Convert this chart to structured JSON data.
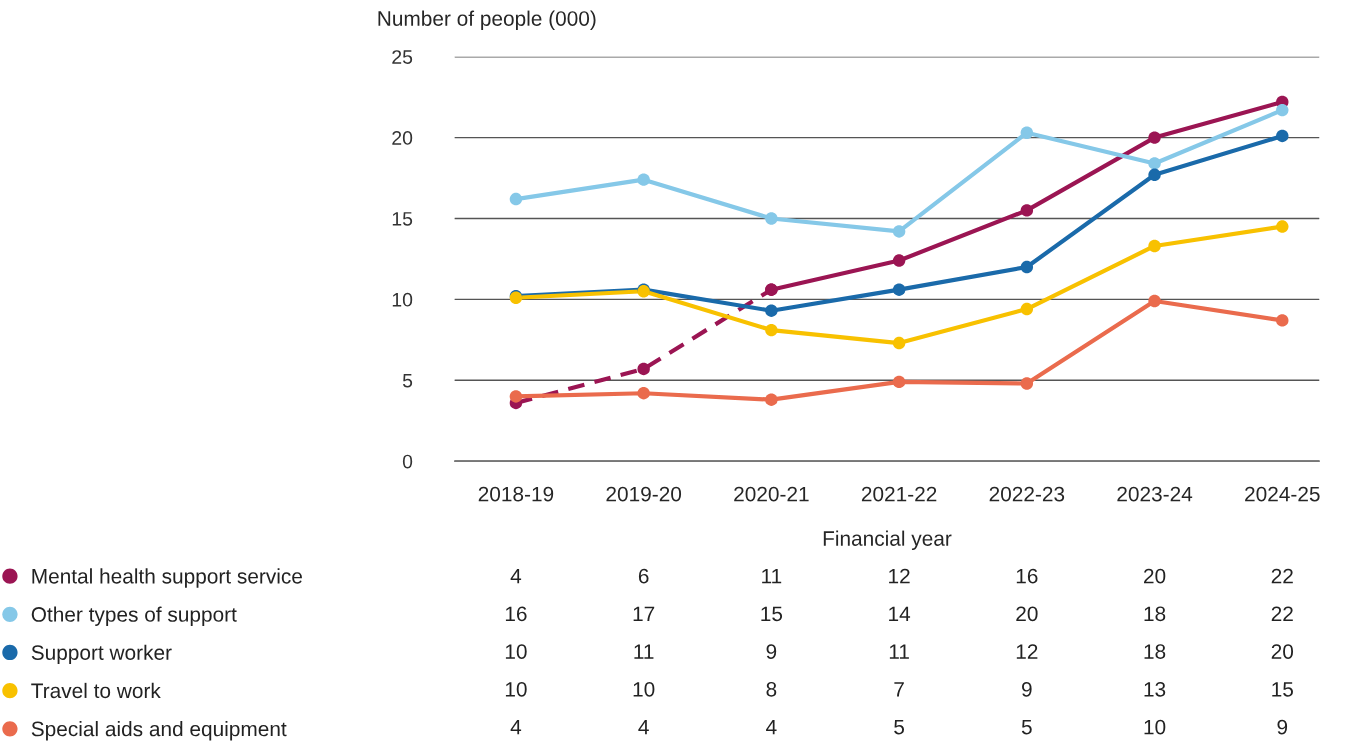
{
  "chart_data": {
    "type": "line",
    "ylabel": "Number of people (000)",
    "xlabel": "Financial year",
    "categories": [
      "2018-19",
      "2019-20",
      "2020-21",
      "2021-22",
      "2022-23",
      "2023-24",
      "2024-25"
    ],
    "ylim": [
      0,
      25
    ],
    "yticks": [
      0,
      5,
      10,
      15,
      20,
      25
    ],
    "grid": "y",
    "marker": "circle",
    "legend": "bottom",
    "series": [
      {
        "color": "#9b1553",
        "line_style": "dashed",
        "values": [
          3.6,
          5.7,
          10.6,
          null,
          null,
          null,
          null
        ]
      },
      {
        "name": "Mental health support service",
        "color": "#9b1553",
        "line_style": "solid",
        "values": [
          null,
          null,
          10.6,
          12.4,
          15.5,
          20.0,
          22.2
        ],
        "value_labels": [
          "4",
          "6",
          "11",
          "12",
          "16",
          "20",
          "22"
        ]
      },
      {
        "name": "Other types of support",
        "color": "#85c8e8",
        "line_style": "solid",
        "values": [
          16.2,
          17.4,
          15.0,
          14.2,
          20.3,
          18.4,
          21.7
        ],
        "value_labels": [
          "16",
          "17",
          "15",
          "14",
          "20",
          "18",
          "22"
        ]
      },
      {
        "name": "Support worker",
        "color": "#1a6aaa",
        "line_style": "solid",
        "values": [
          10.2,
          10.6,
          9.3,
          10.6,
          12.0,
          17.7,
          20.1
        ],
        "value_labels": [
          "10",
          "11",
          "9",
          "11",
          "12",
          "18",
          "20"
        ]
      },
      {
        "name": "Travel to work",
        "color": "#f8c100",
        "line_style": "solid",
        "values": [
          10.1,
          10.5,
          8.1,
          7.3,
          9.4,
          13.3,
          14.5
        ],
        "value_labels": [
          "10",
          "10",
          "8",
          "7",
          "9",
          "13",
          "15"
        ]
      },
      {
        "name": "Special aids and equipment",
        "color": "#ea6b4d",
        "line_style": "solid",
        "values": [
          4.0,
          4.2,
          3.8,
          4.9,
          4.8,
          9.9,
          8.7
        ],
        "value_labels": [
          "4",
          "4",
          "4",
          "5",
          "5",
          "10",
          "9"
        ]
      }
    ]
  }
}
